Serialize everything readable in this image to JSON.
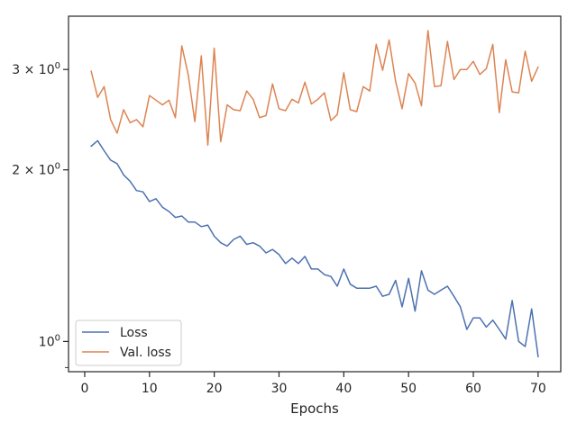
{
  "chart_data": {
    "type": "line",
    "title": "",
    "xlabel": "Epochs",
    "ylabel": "",
    "y_scale": "log",
    "grid": false,
    "legend_position": "lower-left",
    "xlim": [
      -2.5,
      73.5
    ],
    "ylim": [
      0.885,
      3.72
    ],
    "x_ticks": [
      {
        "value": 0,
        "label": "0"
      },
      {
        "value": 10,
        "label": "10"
      },
      {
        "value": 20,
        "label": "20"
      },
      {
        "value": 30,
        "label": "30"
      },
      {
        "value": 40,
        "label": "40"
      },
      {
        "value": 50,
        "label": "50"
      },
      {
        "value": 60,
        "label": "60"
      },
      {
        "value": 70,
        "label": "70"
      }
    ],
    "y_ticks": [
      {
        "value": 1,
        "base": "10",
        "exp": "0"
      },
      {
        "value": 2,
        "base": "2 × 10",
        "exp": "0"
      },
      {
        "value": 3,
        "base": "3 × 10",
        "exp": "0"
      }
    ],
    "y_minor_ticks": [
      0.9
    ],
    "x": [
      1,
      2,
      3,
      4,
      5,
      6,
      7,
      8,
      9,
      10,
      11,
      12,
      13,
      14,
      15,
      16,
      17,
      18,
      19,
      20,
      21,
      22,
      23,
      24,
      25,
      26,
      27,
      28,
      29,
      30,
      31,
      32,
      33,
      34,
      35,
      36,
      37,
      38,
      39,
      40,
      41,
      42,
      43,
      44,
      45,
      46,
      47,
      48,
      49,
      50,
      51,
      52,
      53,
      54,
      55,
      56,
      57,
      58,
      59,
      60,
      61,
      62,
      63,
      64,
      65,
      66,
      67,
      68,
      69,
      70
    ],
    "series": [
      {
        "name": "Loss",
        "color": "#4c72b0",
        "values": [
          2.2,
          2.25,
          2.16,
          2.08,
          2.05,
          1.96,
          1.91,
          1.84,
          1.83,
          1.76,
          1.78,
          1.72,
          1.69,
          1.65,
          1.66,
          1.62,
          1.62,
          1.59,
          1.6,
          1.53,
          1.49,
          1.47,
          1.51,
          1.53,
          1.48,
          1.49,
          1.47,
          1.43,
          1.45,
          1.42,
          1.37,
          1.4,
          1.37,
          1.41,
          1.34,
          1.34,
          1.31,
          1.3,
          1.25,
          1.34,
          1.26,
          1.24,
          1.24,
          1.24,
          1.25,
          1.2,
          1.21,
          1.28,
          1.15,
          1.29,
          1.13,
          1.33,
          1.23,
          1.21,
          1.23,
          1.25,
          1.2,
          1.15,
          1.05,
          1.1,
          1.1,
          1.06,
          1.09,
          1.05,
          1.01,
          1.18,
          1.0,
          0.98,
          1.14,
          0.94
        ]
      },
      {
        "name": "Val. loss",
        "color": "#dd8452",
        "values": [
          2.98,
          2.68,
          2.8,
          2.45,
          2.32,
          2.55,
          2.42,
          2.45,
          2.38,
          2.7,
          2.65,
          2.6,
          2.65,
          2.47,
          3.3,
          2.93,
          2.43,
          3.17,
          2.21,
          3.27,
          2.24,
          2.6,
          2.55,
          2.54,
          2.75,
          2.66,
          2.47,
          2.49,
          2.83,
          2.56,
          2.54,
          2.66,
          2.62,
          2.85,
          2.61,
          2.66,
          2.73,
          2.44,
          2.5,
          2.96,
          2.55,
          2.53,
          2.8,
          2.75,
          3.32,
          2.99,
          3.38,
          2.86,
          2.56,
          2.95,
          2.84,
          2.59,
          3.51,
          2.8,
          2.81,
          3.36,
          2.88,
          3.0,
          3.0,
          3.1,
          2.94,
          3.01,
          3.32,
          2.52,
          3.12,
          2.74,
          2.73,
          3.23,
          2.86,
          3.03
        ]
      }
    ]
  }
}
